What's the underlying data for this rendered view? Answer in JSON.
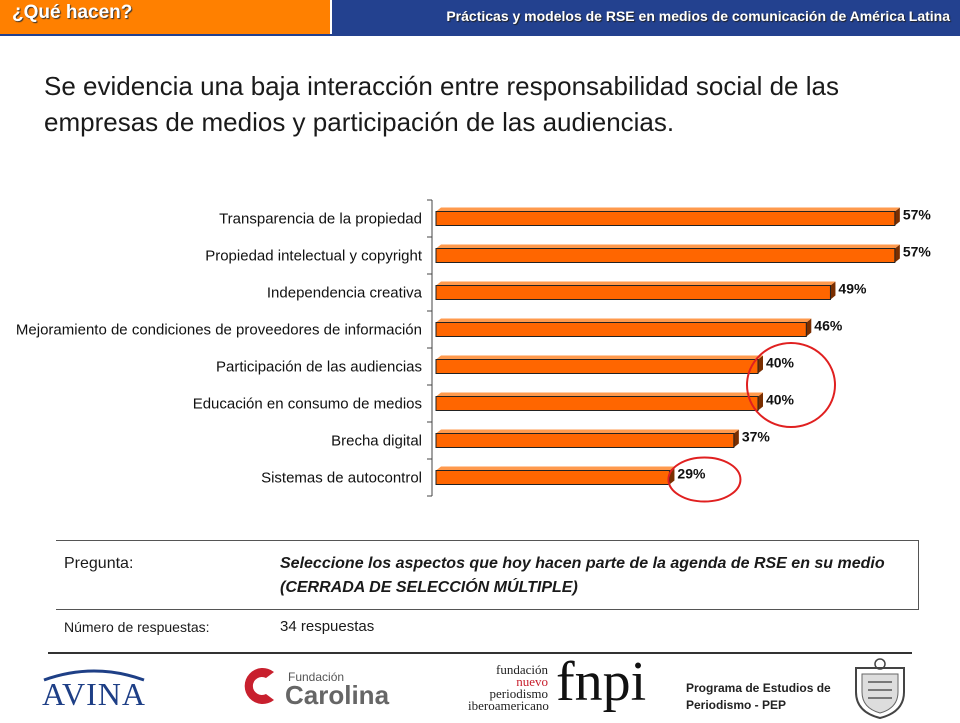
{
  "header": {
    "tab_label": "¿Qué hacen?",
    "title": "Prácticas y modelos de RSE en medios de comunicación de América Latina",
    "colors": {
      "bar": "#23418f",
      "tab": "#ff8000"
    }
  },
  "headline": "Se evidencia una baja interacción entre responsabilidad social de las empresas de medios y participación de las audiencias.",
  "chart_data": {
    "type": "bar",
    "orientation": "horizontal",
    "categories": [
      "Transparencia de la propiedad",
      "Propiedad intelectual y copyright",
      "Independencia creativa",
      "Mejoramiento de condiciones de proveedores de información",
      "Participación de las audiencias",
      "Educación en consumo de medios",
      "Brecha digital",
      "Sistemas de autocontrol"
    ],
    "values": [
      57,
      57,
      49,
      46,
      40,
      40,
      37,
      29
    ],
    "value_labels": [
      "57%",
      "57%",
      "49%",
      "46%",
      "40%",
      "40%",
      "37%",
      "29%"
    ],
    "xlim": [
      0,
      60
    ],
    "bar_color": "#ff6600",
    "highlighted_categories": [
      "Participación de las audiencias",
      "Educación en consumo de medios",
      "Sistemas de autocontrol"
    ],
    "highlight_color": "#e02020"
  },
  "question": {
    "label": "Pregunta:",
    "text": "Seleccione los aspectos que hoy hacen parte de la agenda de RSE en su medio (CERRADA DE SELECCIÓN MÚLTIPLE)",
    "responses_label": "Número de respuestas:",
    "responses_value": "34 respuestas"
  },
  "footer": {
    "avina": "AVINA",
    "fundacion_small": "Fundación",
    "fundacion_big": "Carolina",
    "fnpi_words": [
      "fundación",
      "nuevo",
      "periodismo",
      "iberoamericano"
    ],
    "fnpi": "fnpi",
    "pep_line1": "Programa de Estudios de",
    "pep_line2": "Periodismo - PEP"
  }
}
